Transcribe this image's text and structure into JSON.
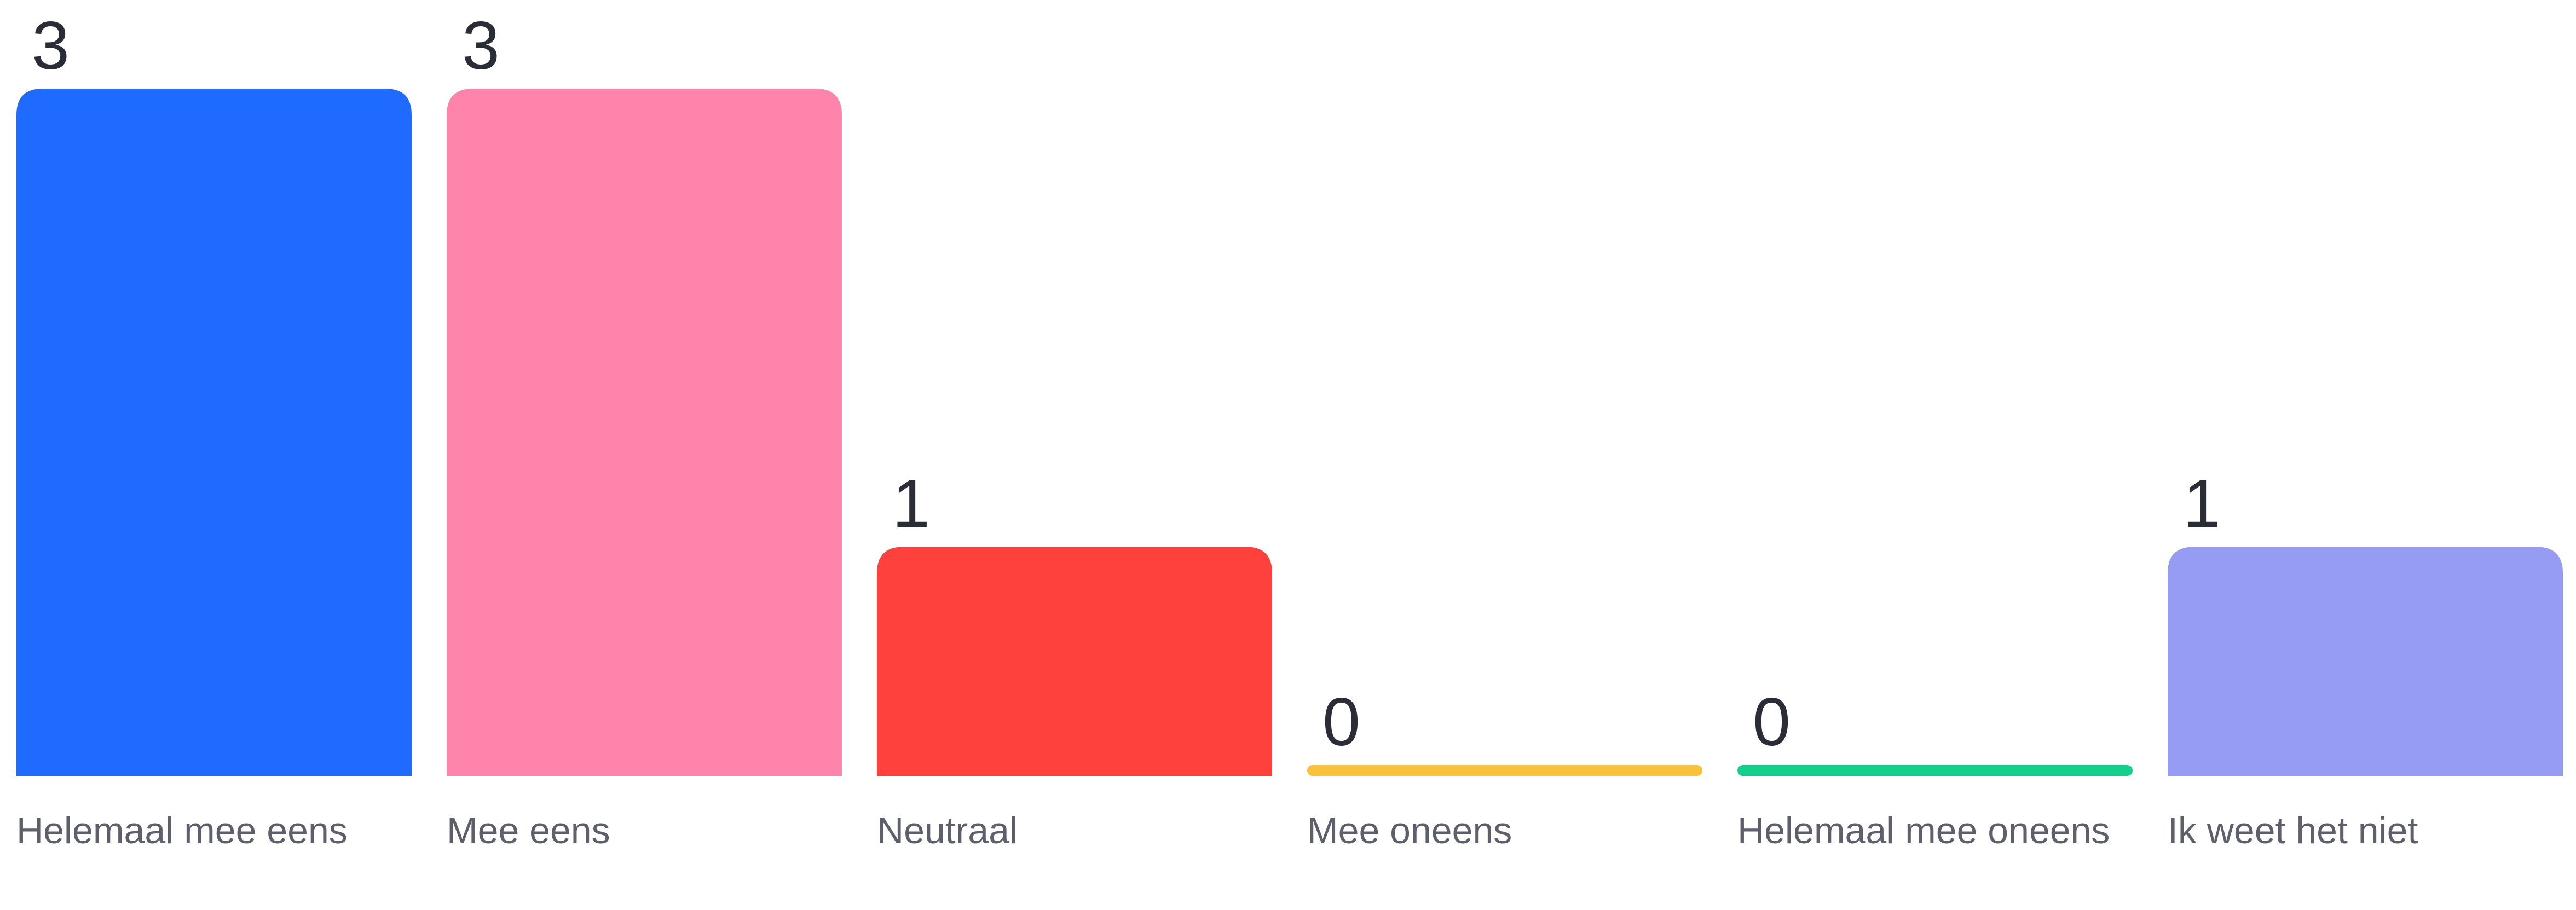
{
  "chart_data": {
    "type": "bar",
    "categories": [
      "Helemaal mee eens",
      "Mee eens",
      "Neutraal",
      "Mee oneens",
      "Helemaal mee oneens",
      "Ik weet het niet"
    ],
    "values": [
      3,
      3,
      1,
      0,
      0,
      1
    ],
    "colors": [
      "#1f6bff",
      "#ff84ac",
      "#ff413e",
      "#f9c23c",
      "#12d08b",
      "#969cf4"
    ],
    "ylim": [
      0,
      3
    ],
    "grid": false,
    "legend": "none",
    "labels": {
      "0": "Helemaal mee eens",
      "1": "Mee eens",
      "2": "Neutraal",
      "3": "Mee oneens",
      "4": "Helemaal mee oneens",
      "5": "Ik weet het niet"
    },
    "value_text": {
      "0": "3",
      "1": "3",
      "2": "1",
      "3": "0",
      "4": "0",
      "5": "1"
    }
  }
}
